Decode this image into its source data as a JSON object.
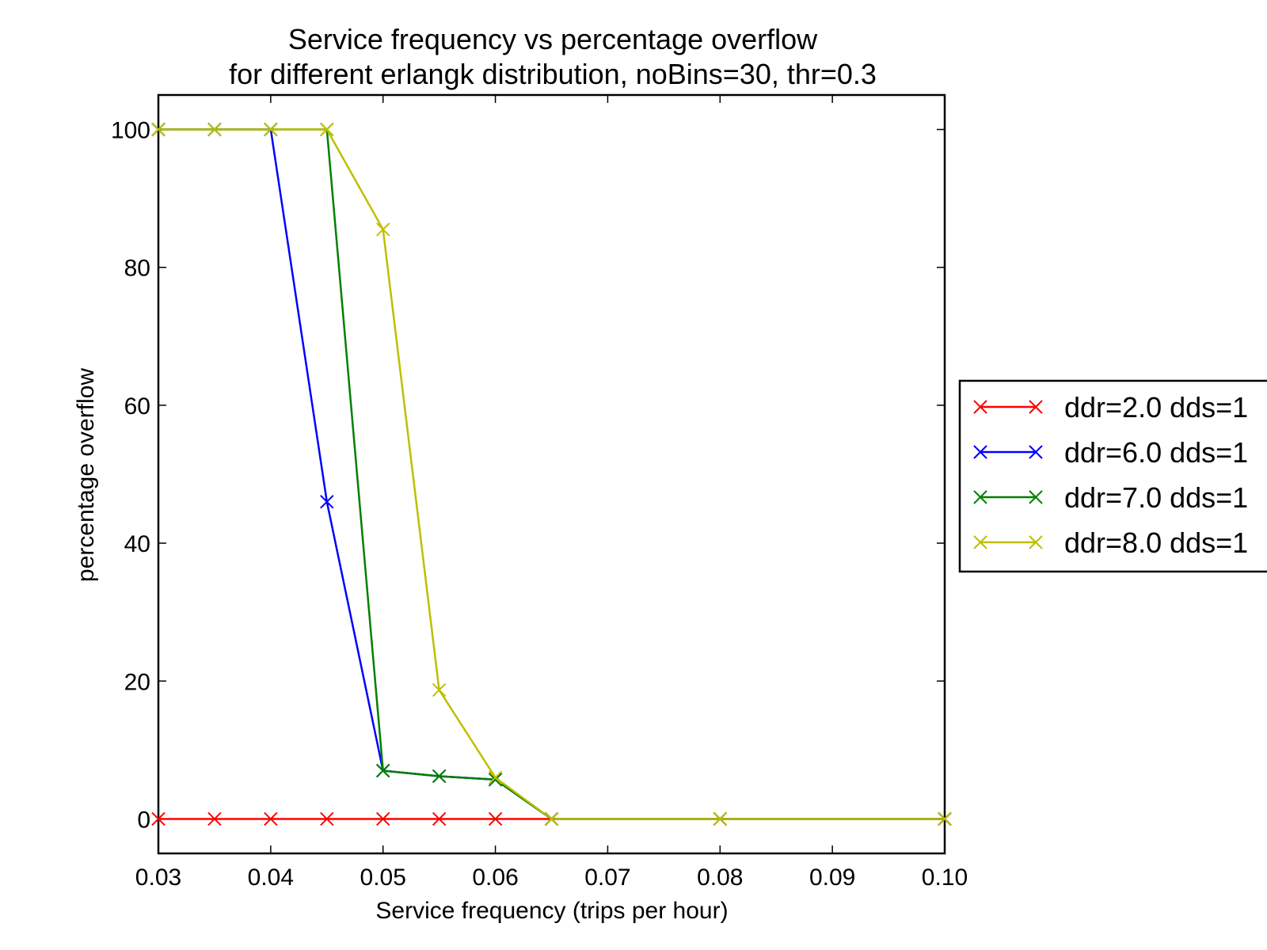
{
  "chart_data": {
    "type": "line",
    "title": "Service frequency vs percentage overflow",
    "subtitle": "for different erlangk distribution, noBins=30, thr=0.3",
    "xlabel": "Service frequency (trips per hour)",
    "ylabel": "percentage overflow",
    "xlim": [
      0.03,
      0.1
    ],
    "ylim": [
      -5,
      105
    ],
    "xticks": [
      "0.03",
      "0.04",
      "0.05",
      "0.06",
      "0.07",
      "0.08",
      "0.09",
      "0.10"
    ],
    "yticks": [
      "0",
      "20",
      "40",
      "60",
      "80",
      "100"
    ],
    "grid": false,
    "legend_position": "right, outside plot",
    "marker": "x",
    "x": [
      0.03,
      0.035,
      0.04,
      0.045,
      0.05,
      0.055,
      0.06,
      0.065,
      0.08,
      0.1
    ],
    "series": [
      {
        "name": "ddr=2.0 dds=1",
        "color": "#ff0000",
        "values": [
          0,
          0,
          0,
          0,
          0,
          0,
          0,
          0,
          0,
          0
        ]
      },
      {
        "name": "ddr=6.0 dds=1",
        "color": "#0000ff",
        "values": [
          100,
          100,
          100,
          46,
          7,
          6.2,
          5.7,
          0,
          0,
          0
        ]
      },
      {
        "name": "ddr=7.0 dds=1",
        "color": "#008000",
        "values": [
          100,
          100,
          100,
          100,
          7,
          6.2,
          5.7,
          0,
          0,
          0
        ]
      },
      {
        "name": "ddr=8.0 dds=1",
        "color": "#bfbf00",
        "values": [
          100,
          100,
          100,
          100,
          85.5,
          18.7,
          6,
          0,
          0,
          0
        ]
      }
    ]
  }
}
